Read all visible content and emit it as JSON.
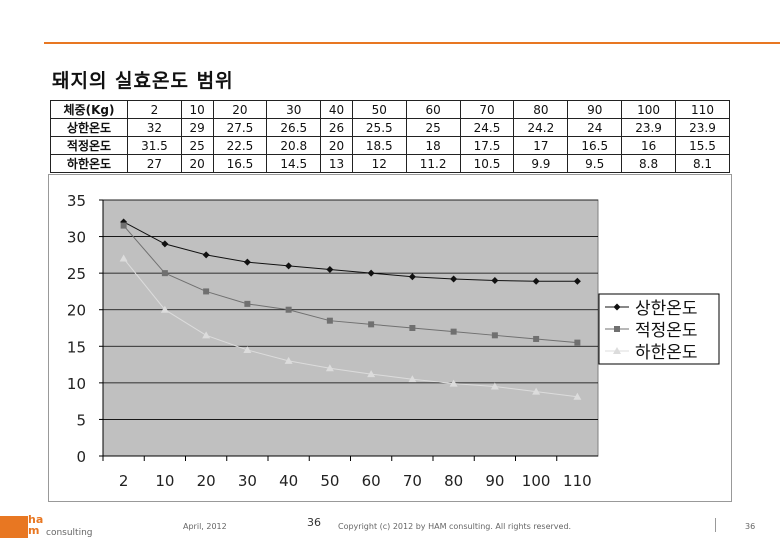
{
  "slide": {
    "title": "돼지의 실효온도 범위"
  },
  "table": {
    "rows": [
      [
        "체중(Kg)",
        "2",
        "10",
        "20",
        "30",
        "40",
        "50",
        "60",
        "70",
        "80",
        "90",
        "100",
        "110"
      ],
      [
        "상한온도",
        "32",
        "29",
        "27.5",
        "26.5",
        "26",
        "25.5",
        "25",
        "24.5",
        "24.2",
        "24",
        "23.9",
        "23.9"
      ],
      [
        "적정온도",
        "31.5",
        "25",
        "22.5",
        "20.8",
        "20",
        "18.5",
        "18",
        "17.5",
        "17",
        "16.5",
        "16",
        "15.5"
      ],
      [
        "하한온도",
        "27",
        "20",
        "16.5",
        "14.5",
        "13",
        "12",
        "11.2",
        "10.5",
        "9.9",
        "9.5",
        "8.8",
        "8.1"
      ]
    ]
  },
  "chart_data": {
    "type": "line",
    "categories": [
      "2",
      "10",
      "20",
      "30",
      "40",
      "50",
      "60",
      "70",
      "80",
      "90",
      "100",
      "110"
    ],
    "series": [
      {
        "name": "상한온도",
        "values": [
          32,
          29,
          27.5,
          26.5,
          26,
          25.5,
          25,
          24.5,
          24.2,
          24,
          23.9,
          23.9
        ],
        "color": "#111111",
        "marker": "diamond"
      },
      {
        "name": "적정온도",
        "values": [
          31.5,
          25,
          22.5,
          20.8,
          20,
          18.5,
          18,
          17.5,
          17,
          16.5,
          16,
          15.5
        ],
        "color": "#707070",
        "marker": "square"
      },
      {
        "name": "하한온도",
        "values": [
          27,
          20,
          16.5,
          14.5,
          13,
          12,
          11.2,
          10.5,
          9.9,
          9.5,
          8.8,
          8.1
        ],
        "color": "#dcdcdc",
        "marker": "triangle"
      }
    ],
    "yticks": [
      "0",
      "5",
      "10",
      "15",
      "20",
      "25",
      "30",
      "35"
    ],
    "ylim": [
      0,
      35
    ],
    "grid": true,
    "legend": "right",
    "plot_background": "#c0c0c0"
  },
  "footer": {
    "logo_top": "ha",
    "logo_bottom": "m",
    "logo_word": "consulting",
    "date": "April, 2012",
    "page_big": "36",
    "copyright": "Copyright (c) 2012 by HAM consulting. All rights reserved.",
    "page": "36"
  }
}
